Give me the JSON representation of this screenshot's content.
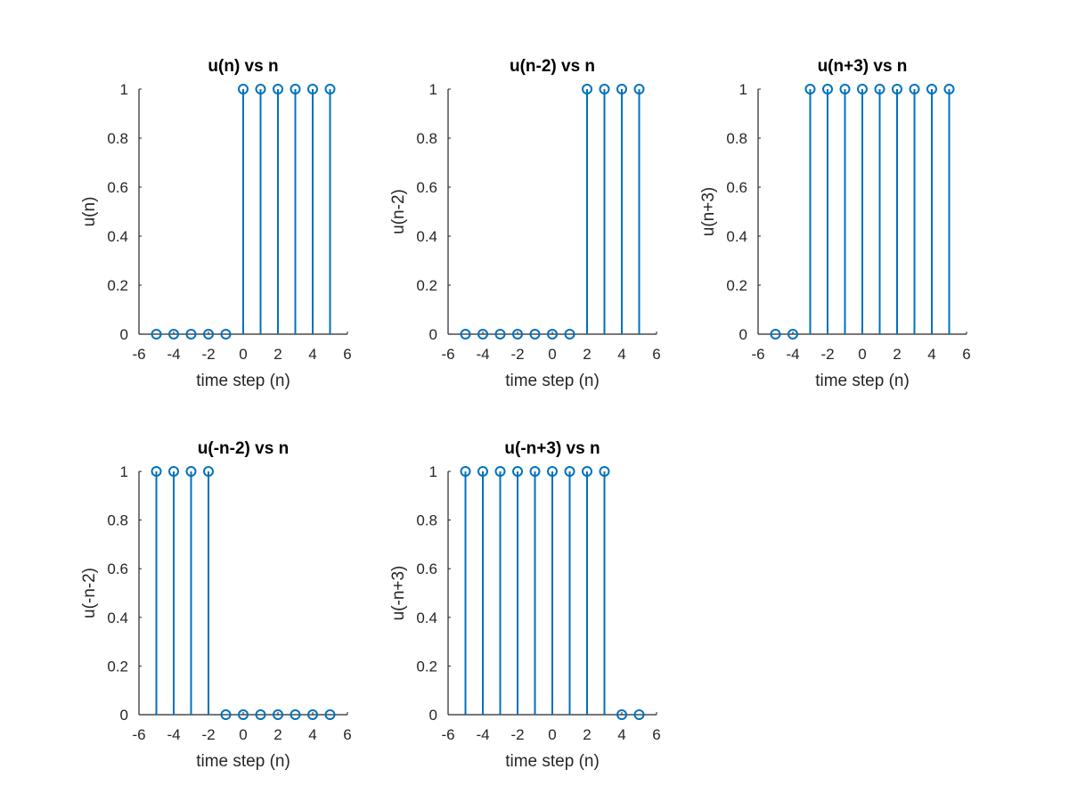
{
  "figure": {
    "background": "#ffffff"
  },
  "style": {
    "stem_color": "#0072BD",
    "axis_color": "#262626"
  },
  "chart_data": [
    {
      "type": "stem",
      "title": "u(n) vs n",
      "xlabel": "time step (n)",
      "ylabel": "u(n)",
      "xlim": [
        -6,
        6
      ],
      "ylim": [
        0,
        1
      ],
      "xticks": [
        "-6",
        "-4",
        "-2",
        "0",
        "2",
        "4",
        "6"
      ],
      "yticks": [
        "0",
        "0.2",
        "0.4",
        "0.6",
        "0.8",
        "1"
      ],
      "grid": false,
      "x": [
        -5,
        -4,
        -3,
        -2,
        -1,
        0,
        1,
        2,
        3,
        4,
        5
      ],
      "y": [
        0,
        0,
        0,
        0,
        0,
        1,
        1,
        1,
        1,
        1,
        1
      ]
    },
    {
      "type": "stem",
      "title": "u(n-2) vs n",
      "xlabel": "time step (n)",
      "ylabel": "u(n-2)",
      "xlim": [
        -6,
        6
      ],
      "ylim": [
        0,
        1
      ],
      "xticks": [
        "-6",
        "-4",
        "-2",
        "0",
        "2",
        "4",
        "6"
      ],
      "yticks": [
        "0",
        "0.2",
        "0.4",
        "0.6",
        "0.8",
        "1"
      ],
      "grid": false,
      "x": [
        -5,
        -4,
        -3,
        -2,
        -1,
        0,
        1,
        2,
        3,
        4,
        5
      ],
      "y": [
        0,
        0,
        0,
        0,
        0,
        0,
        0,
        1,
        1,
        1,
        1
      ]
    },
    {
      "type": "stem",
      "title": "u(n+3) vs n",
      "xlabel": "time step (n)",
      "ylabel": "u(n+3)",
      "xlim": [
        -6,
        6
      ],
      "ylim": [
        0,
        1
      ],
      "xticks": [
        "-6",
        "-4",
        "-2",
        "0",
        "2",
        "4",
        "6"
      ],
      "yticks": [
        "0",
        "0.2",
        "0.4",
        "0.6",
        "0.8",
        "1"
      ],
      "grid": false,
      "x": [
        -5,
        -4,
        -3,
        -2,
        -1,
        0,
        1,
        2,
        3,
        4,
        5
      ],
      "y": [
        0,
        0,
        1,
        1,
        1,
        1,
        1,
        1,
        1,
        1,
        1
      ]
    },
    {
      "type": "stem",
      "title": "u(-n-2) vs n",
      "xlabel": "time step (n)",
      "ylabel": "u(-n-2)",
      "xlim": [
        -6,
        6
      ],
      "ylim": [
        0,
        1
      ],
      "xticks": [
        "-6",
        "-4",
        "-2",
        "0",
        "2",
        "4",
        "6"
      ],
      "yticks": [
        "0",
        "0.2",
        "0.4",
        "0.6",
        "0.8",
        "1"
      ],
      "grid": false,
      "x": [
        -5,
        -4,
        -3,
        -2,
        -1,
        0,
        1,
        2,
        3,
        4,
        5
      ],
      "y": [
        1,
        1,
        1,
        1,
        0,
        0,
        0,
        0,
        0,
        0,
        0
      ]
    },
    {
      "type": "stem",
      "title": "u(-n+3) vs n",
      "xlabel": "time step (n)",
      "ylabel": "u(-n+3)",
      "xlim": [
        -6,
        6
      ],
      "ylim": [
        0,
        1
      ],
      "xticks": [
        "-6",
        "-4",
        "-2",
        "0",
        "2",
        "4",
        "6"
      ],
      "yticks": [
        "0",
        "0.2",
        "0.4",
        "0.6",
        "0.8",
        "1"
      ],
      "grid": false,
      "x": [
        -5,
        -4,
        -3,
        -2,
        -1,
        0,
        1,
        2,
        3,
        4,
        5
      ],
      "y": [
        1,
        1,
        1,
        1,
        1,
        1,
        1,
        1,
        1,
        0,
        0
      ]
    }
  ]
}
